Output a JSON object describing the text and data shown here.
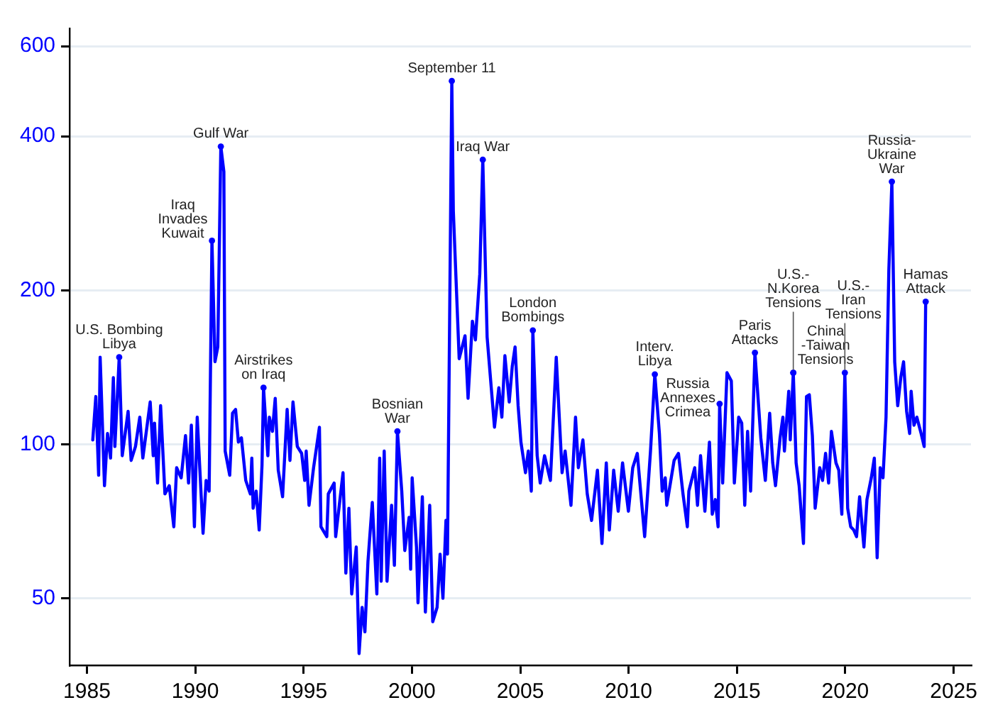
{
  "chart_data": {
    "type": "line",
    "log": "y",
    "grid": "y",
    "legend": false,
    "marker": "none",
    "line_style": "solid",
    "xlim": [
      1984.2,
      2025.8
    ],
    "xticks": [
      1985,
      1990,
      1995,
      2000,
      2005,
      2010,
      2015,
      2020,
      2025
    ],
    "ylim": [
      37,
      650
    ],
    "yticks": [
      50,
      100,
      200,
      400,
      600
    ],
    "series": [
      {
        "color": "#0000ff",
        "x": [
          1985.27,
          1985.41,
          1985.54,
          1985.61,
          1985.81,
          1985.95,
          1986.09,
          1986.22,
          1986.29,
          1986.49,
          1986.63,
          1986.9,
          1987.04,
          1987.24,
          1987.44,
          1987.58,
          1987.92,
          1988.06,
          1988.12,
          1988.26,
          1988.4,
          1988.6,
          1988.8,
          1989.01,
          1989.14,
          1989.35,
          1989.55,
          1989.69,
          1989.82,
          1989.96,
          1990.09,
          1990.36,
          1990.5,
          1990.64,
          1990.77,
          1990.91,
          1991.04,
          1991.18,
          1991.32,
          1991.38,
          1991.59,
          1991.72,
          1991.86,
          1991.99,
          1992.13,
          1992.33,
          1992.54,
          1992.61,
          1992.67,
          1992.81,
          1992.95,
          1993.08,
          1993.15,
          1993.35,
          1993.42,
          1993.56,
          1993.69,
          1993.83,
          1994.03,
          1994.24,
          1994.37,
          1994.51,
          1994.71,
          1994.91,
          1995.05,
          1995.12,
          1995.25,
          1995.46,
          1995.73,
          1995.8,
          1996.07,
          1996.14,
          1996.41,
          1996.48,
          1996.82,
          1996.95,
          1997.09,
          1997.22,
          1997.43,
          1997.56,
          1997.7,
          1997.83,
          1997.97,
          1998.17,
          1998.38,
          1998.51,
          1998.58,
          1998.72,
          1998.85,
          1999.06,
          1999.19,
          1999.33,
          1999.53,
          1999.67,
          1999.87,
          1999.94,
          2000.01,
          2000.21,
          2000.28,
          2000.48,
          2000.62,
          2000.82,
          2000.96,
          2001.16,
          2001.3,
          2001.43,
          2001.57,
          2001.64,
          2001.84,
          2001.91,
          2002.18,
          2002.45,
          2002.59,
          2002.79,
          2002.93,
          2003.13,
          2003.27,
          2003.47,
          2003.61,
          2003.81,
          2004.01,
          2004.15,
          2004.29,
          2004.49,
          2004.63,
          2004.76,
          2004.9,
          2005.03,
          2005.24,
          2005.37,
          2005.51,
          2005.58,
          2005.78,
          2005.92,
          2006.12,
          2006.39,
          2006.66,
          2006.8,
          2006.93,
          2007.07,
          2007.34,
          2007.55,
          2007.68,
          2007.89,
          2008.09,
          2008.29,
          2008.56,
          2008.77,
          2008.97,
          2009.11,
          2009.31,
          2009.52,
          2009.72,
          2009.99,
          2010.19,
          2010.4,
          2010.74,
          2011.01,
          2011.21,
          2011.42,
          2011.55,
          2011.69,
          2011.76,
          2012.1,
          2012.3,
          2012.51,
          2012.71,
          2012.78,
          2013.05,
          2013.18,
          2013.32,
          2013.52,
          2013.73,
          2013.86,
          2014.0,
          2014.13,
          2014.2,
          2014.34,
          2014.54,
          2014.74,
          2014.88,
          2015.08,
          2015.22,
          2015.36,
          2015.49,
          2015.63,
          2015.83,
          2016.1,
          2016.31,
          2016.51,
          2016.65,
          2016.78,
          2016.99,
          2017.12,
          2017.19,
          2017.39,
          2017.46,
          2017.6,
          2017.73,
          2017.87,
          2018.07,
          2018.21,
          2018.34,
          2018.48,
          2018.61,
          2018.82,
          2018.95,
          2019.09,
          2019.23,
          2019.36,
          2019.57,
          2019.7,
          2019.84,
          2019.98,
          2020.11,
          2020.25,
          2020.39,
          2020.52,
          2020.66,
          2020.86,
          2021.0,
          2021.2,
          2021.34,
          2021.47,
          2021.61,
          2021.74,
          2021.88,
          2022.01,
          2022.15,
          2022.28,
          2022.42,
          2022.56,
          2022.69,
          2022.83,
          2022.97,
          2023.04,
          2023.17,
          2023.3,
          2023.5,
          2023.64,
          2023.71
        ],
        "values": [
          102,
          124,
          87,
          148,
          83,
          105,
          94,
          135,
          99,
          148,
          95,
          116,
          93,
          99,
          113,
          94,
          121,
          95,
          110,
          84,
          119,
          80,
          83,
          69,
          90,
          86,
          104,
          84,
          109,
          69,
          113,
          67,
          85,
          81,
          250,
          145,
          155,
          382,
          341,
          97,
          87,
          115,
          117,
          101,
          103,
          85,
          80,
          94,
          75,
          81,
          68,
          91,
          129,
          95,
          113,
          106,
          123,
          89,
          79,
          117,
          93,
          121,
          99,
          96,
          85,
          97,
          76,
          90,
          108,
          69,
          66,
          80,
          84,
          66,
          88,
          56,
          75,
          51,
          63,
          39,
          48,
          43,
          59,
          77,
          51,
          94,
          54,
          97,
          54,
          76,
          58,
          106,
          81,
          62,
          72,
          57,
          86,
          63,
          49,
          79,
          47,
          76,
          45,
          48,
          61,
          50,
          71,
          61,
          513,
          286,
          147,
          163,
          123,
          174,
          160,
          215,
          360,
          162,
          137,
          108,
          129,
          113,
          149,
          121,
          142,
          155,
          119,
          101,
          88,
          97,
          81,
          167,
          95,
          84,
          95,
          85,
          148,
          113,
          88,
          97,
          76,
          113,
          90,
          102,
          80,
          71,
          89,
          64,
          92,
          68,
          89,
          74,
          92,
          74,
          90,
          96,
          66,
          97,
          137,
          105,
          81,
          86,
          76,
          93,
          96,
          80,
          69,
          81,
          90,
          76,
          95,
          74,
          101,
          73,
          78,
          69,
          120,
          84,
          138,
          133,
          84,
          113,
          110,
          76,
          106,
          81,
          151,
          103,
          85,
          115,
          92,
          83,
          103,
          113,
          97,
          127,
          102,
          138,
          92,
          83,
          64,
          124,
          125,
          104,
          75,
          90,
          85,
          96,
          84,
          106,
          92,
          89,
          73,
          138,
          75,
          69,
          68,
          66,
          79,
          63,
          78,
          86,
          94,
          60,
          90,
          86,
          113,
          219,
          326,
          145,
          119,
          135,
          145,
          116,
          105,
          127,
          109,
          113,
          105,
          99,
          190
        ]
      }
    ],
    "annotations": [
      {
        "text": "U.S. Bombing\nLibya",
        "x": 1986.49,
        "y": 148
      },
      {
        "text": "Iraq\nInvades\nKuwait",
        "x": 1990.77,
        "y": 250
      },
      {
        "text": "Gulf War",
        "x": 1991.18,
        "y": 382
      },
      {
        "text": "Airstrikes\non Iraq",
        "x": 1993.15,
        "y": 129
      },
      {
        "text": "Bosnian\nWar",
        "x": 1999.33,
        "y": 106
      },
      {
        "text": "September 11",
        "x": 2001.84,
        "y": 513
      },
      {
        "text": "Iraq War",
        "x": 2003.27,
        "y": 360
      },
      {
        "text": "London\nBombings",
        "x": 2005.58,
        "y": 167
      },
      {
        "text": "Interv.\nLibya",
        "x": 2011.21,
        "y": 137
      },
      {
        "text": "Russia\nAnnexes\nCrimea",
        "x": 2014.2,
        "y": 120
      },
      {
        "text": "Paris\nAttacks",
        "x": 2015.83,
        "y": 151
      },
      {
        "text": "China\n-Taiwan\nTensions",
        "x": 2017.6,
        "y": 138
      },
      {
        "text": "U.S.-\nN.Korea\nTensions",
        "x": 2017.6,
        "y": 138
      },
      {
        "text": "U.S.-\nIran\nTensions",
        "x": 2019.98,
        "y": 138
      },
      {
        "text": "Russia-\nUkraine\nWar",
        "x": 2022.15,
        "y": 326
      },
      {
        "text": "Hamas\nAttack",
        "x": 2023.71,
        "y": 190
      }
    ]
  }
}
